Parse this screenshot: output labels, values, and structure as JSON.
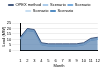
{
  "chart_data": {
    "type": "area",
    "y_label": "Load (MW)",
    "x_label": "Month",
    "categories": [
      "1",
      "2",
      "3",
      "4",
      "5",
      "6",
      "7",
      "8",
      "9",
      "10",
      "11",
      "12"
    ],
    "series": [
      {
        "name": "OPEX method",
        "color": "#1f3864",
        "values": [
          12,
          20,
          19,
          7,
          6,
          6,
          6,
          6,
          6,
          7,
          11,
          12
        ]
      },
      {
        "name": "Scenario",
        "color": "#9dc3e6",
        "values": [
          11.5,
          19.5,
          18.5,
          6.5,
          5.5,
          5.5,
          5.5,
          5.5,
          5.5,
          6.5,
          10.5,
          11.5
        ]
      },
      {
        "name": "Scenario",
        "color": "#5b9bd5",
        "values": [
          11,
          19,
          18,
          6,
          5,
          5,
          5,
          5,
          5,
          6,
          10,
          11
        ]
      },
      {
        "name": "Scenario",
        "color": "#bdd7ee",
        "values": [
          10.5,
          18.5,
          17.5,
          5.5,
          4.5,
          4.5,
          4.5,
          4.5,
          4.5,
          5.5,
          9.5,
          10.5
        ]
      },
      {
        "name": "Scenario",
        "color": "#2e75b6",
        "values": [
          10,
          18,
          17,
          5,
          4,
          4,
          4,
          4,
          4,
          5,
          9,
          10
        ]
      }
    ],
    "ylim": [
      0,
      25
    ],
    "yticks": [
      0,
      5,
      10,
      15,
      20,
      25
    ],
    "grid": true,
    "legend": "top"
  }
}
